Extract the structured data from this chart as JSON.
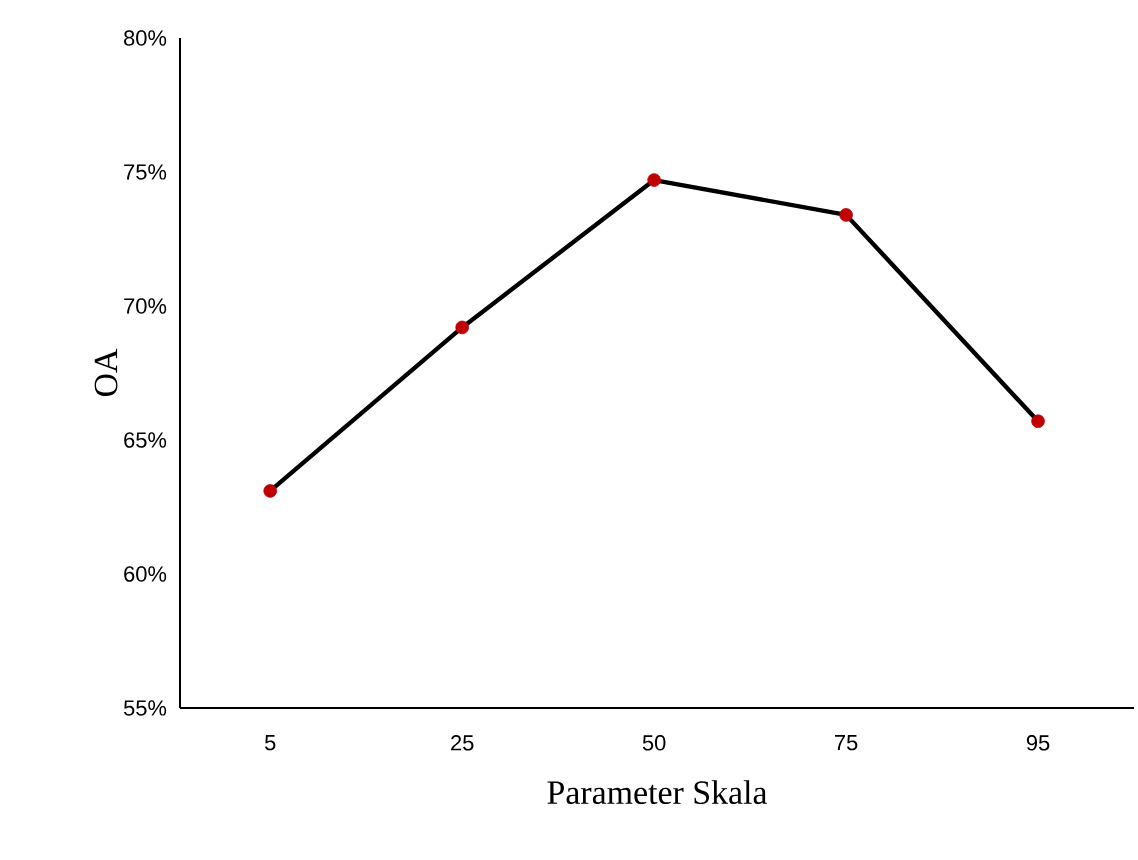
{
  "chart_data": {
    "type": "line",
    "xlabel": "Parameter Skala",
    "ylabel": "OA",
    "categories": [
      "5",
      "25",
      "50",
      "75",
      "95"
    ],
    "series": [
      {
        "color": "#000000",
        "colors": [
          "#c00000",
          "#c00000",
          "#c00000",
          "#c00000",
          "#c00000"
        ],
        "values": [
          63.1,
          69.2,
          74.7,
          73.4,
          65.7
        ]
      }
    ],
    "marker": "circle",
    "line_style": "solid",
    "ylim": [
      55,
      80
    ],
    "yticks": [
      {
        "value": 55,
        "label": "55%"
      },
      {
        "value": 60,
        "label": "60%"
      },
      {
        "value": 65,
        "label": "65%"
      },
      {
        "value": 70,
        "label": "70%"
      },
      {
        "value": 75,
        "label": "75%"
      },
      {
        "value": 80,
        "label": "80%"
      }
    ],
    "grid": false
  }
}
